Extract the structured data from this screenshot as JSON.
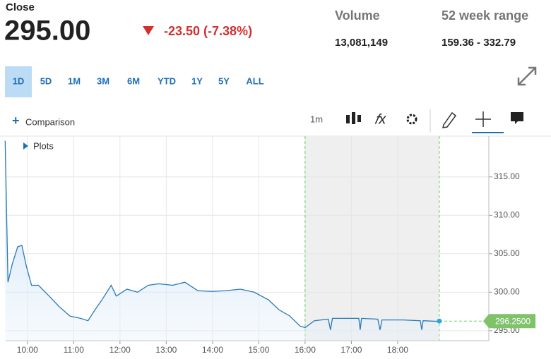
{
  "header": {
    "label": "Close",
    "price": "295.00",
    "change": "-23.50 (-7.38%)",
    "stats": [
      {
        "label": "Volume",
        "value": "13,081,149"
      },
      {
        "label": "52 week range",
        "value": "159.36 - 332.79"
      }
    ]
  },
  "tabs": [
    "1D",
    "5D",
    "1M",
    "3M",
    "6M",
    "YTD",
    "1Y",
    "5Y",
    "ALL"
  ],
  "toolbar": {
    "comparison": "Comparison",
    "interval": "1m",
    "plots": "Plots"
  },
  "chart_data": {
    "type": "line",
    "color": "#2a7ab8",
    "x": [
      9.52,
      9.58,
      9.67,
      9.79,
      9.88,
      9.98,
      10.09,
      10.24,
      10.47,
      10.69,
      10.92,
      11.15,
      11.31,
      11.46,
      11.61,
      11.81,
      11.92,
      12.15,
      12.38,
      12.61,
      12.84,
      13.14,
      13.4,
      13.68,
      13.98,
      14.29,
      14.6,
      14.9,
      15.21,
      15.44,
      15.67,
      15.89,
      16.0,
      16.2,
      16.5,
      16.55,
      16.59,
      16.89,
      17.16,
      17.19,
      17.22,
      17.57,
      17.62,
      17.66,
      18.11,
      18.49,
      18.52,
      18.55,
      18.87,
      18.9
    ],
    "values": [
      319.7,
      301.3,
      303.6,
      305.9,
      306.1,
      303.3,
      300.9,
      300.9,
      299.5,
      298.1,
      296.9,
      296.6,
      296.3,
      297.7,
      299.0,
      300.9,
      299.5,
      300.4,
      300.0,
      300.9,
      301.1,
      300.9,
      301.3,
      300.2,
      300.1,
      300.2,
      300.4,
      300.0,
      299.0,
      297.7,
      296.9,
      295.6,
      295.4,
      296.3,
      296.5,
      295.1,
      296.6,
      296.6,
      296.6,
      295.1,
      296.6,
      296.5,
      295.1,
      296.4,
      296.4,
      296.3,
      295.1,
      296.3,
      296.2,
      296.25
    ],
    "last_label": "296.2500",
    "shaded_range": [
      16.0,
      18.9
    ],
    "xlim": [
      9.53,
      19.97
    ],
    "xticks": [
      {
        "value": 10,
        "label": "10:00"
      },
      {
        "value": 11,
        "label": "11:00"
      },
      {
        "value": 12,
        "label": "12:00"
      },
      {
        "value": 13,
        "label": "13:00"
      },
      {
        "value": 14,
        "label": "14:00"
      },
      {
        "value": 15,
        "label": "15:00"
      },
      {
        "value": 16,
        "label": "16:00"
      },
      {
        "value": 17,
        "label": "17:00"
      },
      {
        "value": 18,
        "label": "18:00"
      }
    ],
    "ylim": [
      293.7,
      320.3
    ],
    "yticks": [
      {
        "value": 295,
        "label": "295.00"
      },
      {
        "value": 300,
        "label": "300.00"
      },
      {
        "value": 305,
        "label": "305.00"
      },
      {
        "value": 310,
        "label": "310.00"
      },
      {
        "value": 315,
        "label": "315.00"
      }
    ],
    "grid": true
  }
}
